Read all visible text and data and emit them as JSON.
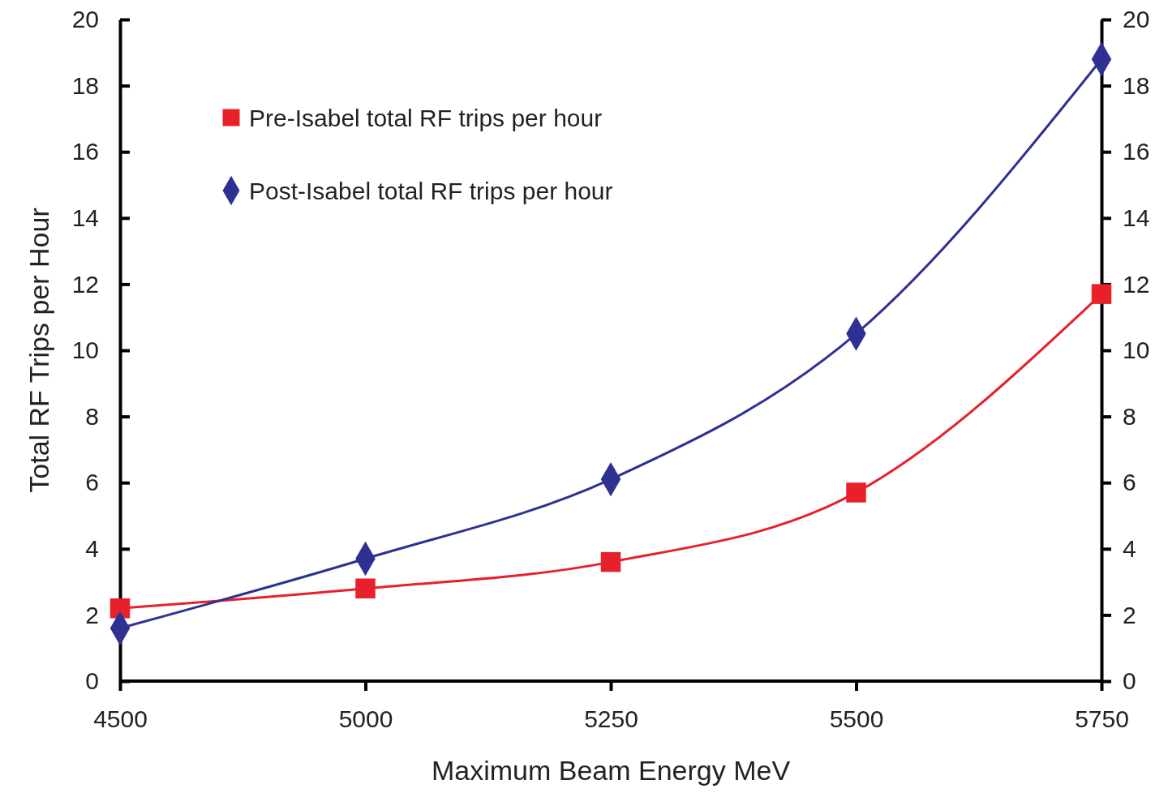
{
  "chart_data": {
    "type": "line",
    "xlabel": "Maximum Beam Energy MeV",
    "ylabel": "Total RF Trips per Hour",
    "categories": [
      "4500",
      "5000",
      "5250",
      "5500",
      "5750"
    ],
    "series": [
      {
        "name": "Pre-Isabel total RF trips per hour",
        "color": "#e8202a",
        "marker": "square",
        "values": [
          2.2,
          2.8,
          3.6,
          5.7,
          11.7
        ]
      },
      {
        "name": "Post-Isabel total RF trips per hour",
        "color": "#2e3192",
        "marker": "diamond",
        "values": [
          1.6,
          3.7,
          6.1,
          10.5,
          18.8
        ]
      }
    ],
    "ylim": [
      0,
      20
    ],
    "yticks": [
      0,
      2,
      4,
      6,
      8,
      10,
      12,
      14,
      16,
      18,
      20
    ],
    "y2lim": [
      0,
      20
    ],
    "y2ticks": [
      0,
      2,
      4,
      6,
      8,
      10,
      12,
      14,
      16,
      18,
      20
    ],
    "grid": false,
    "legend": "top left",
    "line_style": "solid"
  }
}
